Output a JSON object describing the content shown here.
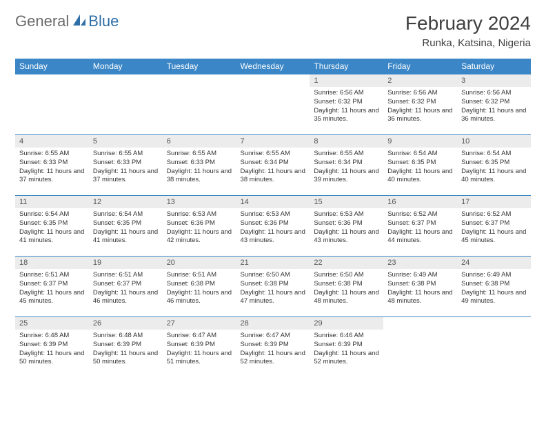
{
  "logo": {
    "part1": "General",
    "part2": "Blue"
  },
  "title": "February 2024",
  "location": "Runka, Katsina, Nigeria",
  "colors": {
    "header_bg": "#3b86c6",
    "header_text": "#ffffff",
    "daynum_bg": "#ececec",
    "border": "#3b86c6",
    "logo_gray": "#6b6b6b",
    "logo_blue": "#2f6fa8",
    "title_color": "#404040"
  },
  "day_headers": [
    "Sunday",
    "Monday",
    "Tuesday",
    "Wednesday",
    "Thursday",
    "Friday",
    "Saturday"
  ],
  "weeks": [
    [
      {
        "empty": true
      },
      {
        "empty": true
      },
      {
        "empty": true
      },
      {
        "empty": true
      },
      {
        "num": "1",
        "sunrise": "Sunrise: 6:56 AM",
        "sunset": "Sunset: 6:32 PM",
        "daylight": "Daylight: 11 hours and 35 minutes."
      },
      {
        "num": "2",
        "sunrise": "Sunrise: 6:56 AM",
        "sunset": "Sunset: 6:32 PM",
        "daylight": "Daylight: 11 hours and 36 minutes."
      },
      {
        "num": "3",
        "sunrise": "Sunrise: 6:56 AM",
        "sunset": "Sunset: 6:32 PM",
        "daylight": "Daylight: 11 hours and 36 minutes."
      }
    ],
    [
      {
        "num": "4",
        "sunrise": "Sunrise: 6:55 AM",
        "sunset": "Sunset: 6:33 PM",
        "daylight": "Daylight: 11 hours and 37 minutes."
      },
      {
        "num": "5",
        "sunrise": "Sunrise: 6:55 AM",
        "sunset": "Sunset: 6:33 PM",
        "daylight": "Daylight: 11 hours and 37 minutes."
      },
      {
        "num": "6",
        "sunrise": "Sunrise: 6:55 AM",
        "sunset": "Sunset: 6:33 PM",
        "daylight": "Daylight: 11 hours and 38 minutes."
      },
      {
        "num": "7",
        "sunrise": "Sunrise: 6:55 AM",
        "sunset": "Sunset: 6:34 PM",
        "daylight": "Daylight: 11 hours and 38 minutes."
      },
      {
        "num": "8",
        "sunrise": "Sunrise: 6:55 AM",
        "sunset": "Sunset: 6:34 PM",
        "daylight": "Daylight: 11 hours and 39 minutes."
      },
      {
        "num": "9",
        "sunrise": "Sunrise: 6:54 AM",
        "sunset": "Sunset: 6:35 PM",
        "daylight": "Daylight: 11 hours and 40 minutes."
      },
      {
        "num": "10",
        "sunrise": "Sunrise: 6:54 AM",
        "sunset": "Sunset: 6:35 PM",
        "daylight": "Daylight: 11 hours and 40 minutes."
      }
    ],
    [
      {
        "num": "11",
        "sunrise": "Sunrise: 6:54 AM",
        "sunset": "Sunset: 6:35 PM",
        "daylight": "Daylight: 11 hours and 41 minutes."
      },
      {
        "num": "12",
        "sunrise": "Sunrise: 6:54 AM",
        "sunset": "Sunset: 6:35 PM",
        "daylight": "Daylight: 11 hours and 41 minutes."
      },
      {
        "num": "13",
        "sunrise": "Sunrise: 6:53 AM",
        "sunset": "Sunset: 6:36 PM",
        "daylight": "Daylight: 11 hours and 42 minutes."
      },
      {
        "num": "14",
        "sunrise": "Sunrise: 6:53 AM",
        "sunset": "Sunset: 6:36 PM",
        "daylight": "Daylight: 11 hours and 43 minutes."
      },
      {
        "num": "15",
        "sunrise": "Sunrise: 6:53 AM",
        "sunset": "Sunset: 6:36 PM",
        "daylight": "Daylight: 11 hours and 43 minutes."
      },
      {
        "num": "16",
        "sunrise": "Sunrise: 6:52 AM",
        "sunset": "Sunset: 6:37 PM",
        "daylight": "Daylight: 11 hours and 44 minutes."
      },
      {
        "num": "17",
        "sunrise": "Sunrise: 6:52 AM",
        "sunset": "Sunset: 6:37 PM",
        "daylight": "Daylight: 11 hours and 45 minutes."
      }
    ],
    [
      {
        "num": "18",
        "sunrise": "Sunrise: 6:51 AM",
        "sunset": "Sunset: 6:37 PM",
        "daylight": "Daylight: 11 hours and 45 minutes."
      },
      {
        "num": "19",
        "sunrise": "Sunrise: 6:51 AM",
        "sunset": "Sunset: 6:37 PM",
        "daylight": "Daylight: 11 hours and 46 minutes."
      },
      {
        "num": "20",
        "sunrise": "Sunrise: 6:51 AM",
        "sunset": "Sunset: 6:38 PM",
        "daylight": "Daylight: 11 hours and 46 minutes."
      },
      {
        "num": "21",
        "sunrise": "Sunrise: 6:50 AM",
        "sunset": "Sunset: 6:38 PM",
        "daylight": "Daylight: 11 hours and 47 minutes."
      },
      {
        "num": "22",
        "sunrise": "Sunrise: 6:50 AM",
        "sunset": "Sunset: 6:38 PM",
        "daylight": "Daylight: 11 hours and 48 minutes."
      },
      {
        "num": "23",
        "sunrise": "Sunrise: 6:49 AM",
        "sunset": "Sunset: 6:38 PM",
        "daylight": "Daylight: 11 hours and 48 minutes."
      },
      {
        "num": "24",
        "sunrise": "Sunrise: 6:49 AM",
        "sunset": "Sunset: 6:38 PM",
        "daylight": "Daylight: 11 hours and 49 minutes."
      }
    ],
    [
      {
        "num": "25",
        "sunrise": "Sunrise: 6:48 AM",
        "sunset": "Sunset: 6:39 PM",
        "daylight": "Daylight: 11 hours and 50 minutes."
      },
      {
        "num": "26",
        "sunrise": "Sunrise: 6:48 AM",
        "sunset": "Sunset: 6:39 PM",
        "daylight": "Daylight: 11 hours and 50 minutes."
      },
      {
        "num": "27",
        "sunrise": "Sunrise: 6:47 AM",
        "sunset": "Sunset: 6:39 PM",
        "daylight": "Daylight: 11 hours and 51 minutes."
      },
      {
        "num": "28",
        "sunrise": "Sunrise: 6:47 AM",
        "sunset": "Sunset: 6:39 PM",
        "daylight": "Daylight: 11 hours and 52 minutes."
      },
      {
        "num": "29",
        "sunrise": "Sunrise: 6:46 AM",
        "sunset": "Sunset: 6:39 PM",
        "daylight": "Daylight: 11 hours and 52 minutes."
      },
      {
        "empty": true
      },
      {
        "empty": true
      }
    ]
  ]
}
